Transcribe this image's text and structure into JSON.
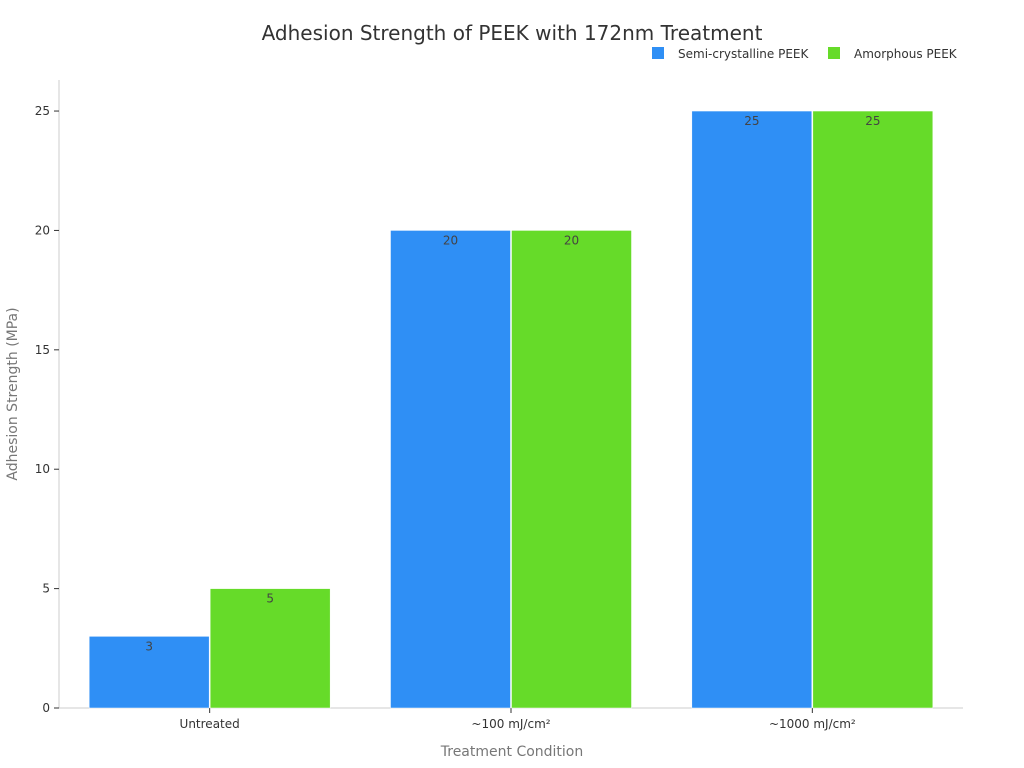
{
  "chart_data": {
    "type": "bar",
    "title": "Adhesion Strength of PEEK with 172nm Treatment",
    "xlabel": "Treatment Condition",
    "ylabel": "Adhesion Strength (MPa)",
    "categories": [
      "Untreated",
      "~100 mJ/cm²",
      "~1000 mJ/cm²"
    ],
    "series": [
      {
        "name": "Semi-crystalline PEEK",
        "values": [
          3,
          20,
          25
        ],
        "color": "#2f8ff5"
      },
      {
        "name": "Amorphous PEEK",
        "values": [
          5,
          20,
          25
        ],
        "color": "#66db29"
      }
    ],
    "ylim": [
      0,
      26.3
    ],
    "yticks": [
      0,
      5,
      10,
      15,
      20,
      25
    ],
    "grid": false,
    "legend_position": "top-right",
    "data_labels": true
  }
}
